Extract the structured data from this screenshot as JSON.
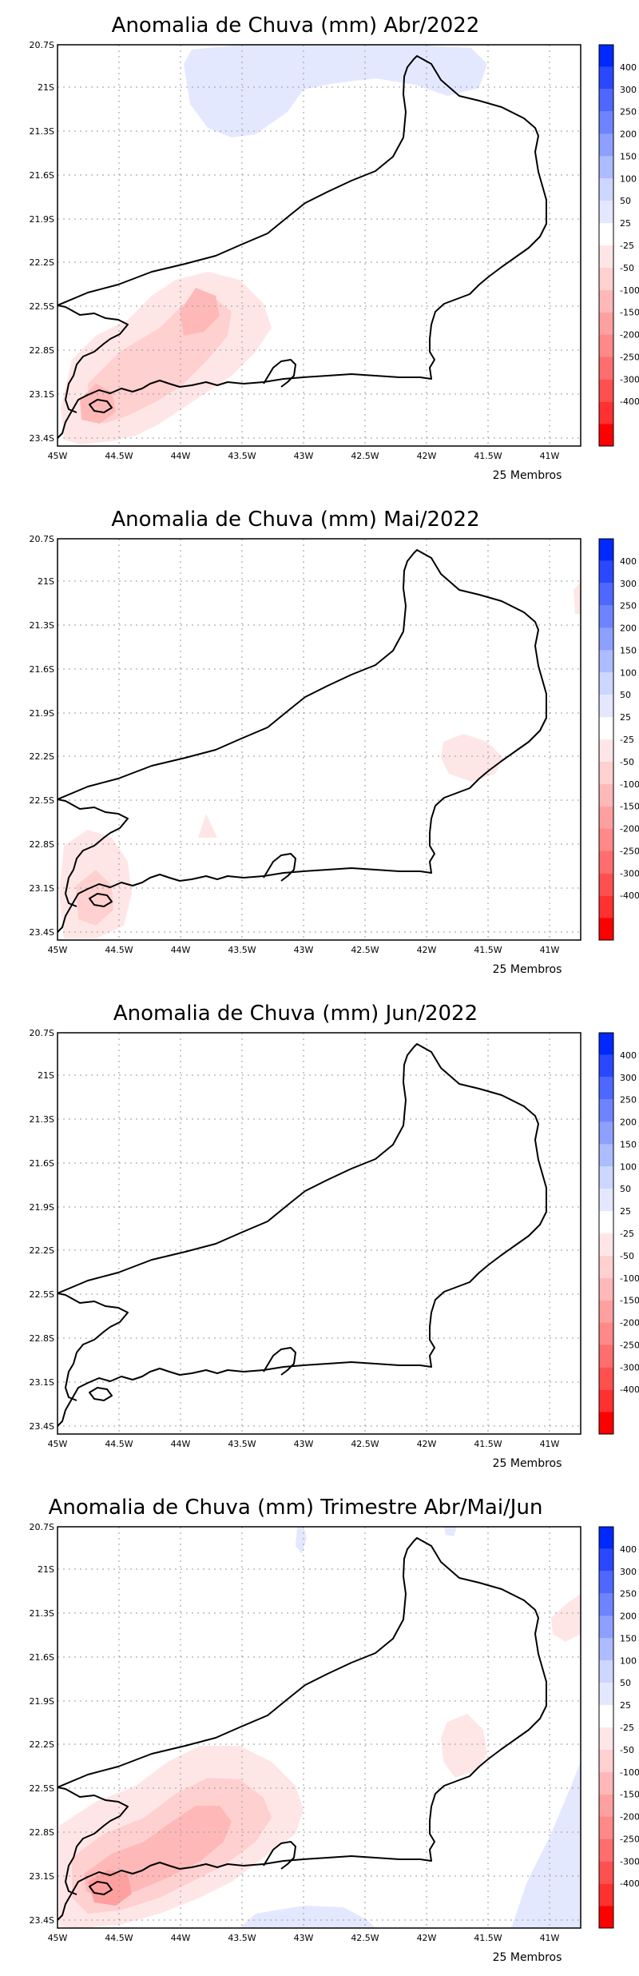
{
  "colors": {
    "blue": [
      "#0028ff",
      "#2a48ff",
      "#4e68ff",
      "#6e84ff",
      "#8ea0ff",
      "#adbcff",
      "#cdd6ff",
      "#e4e8ff"
    ],
    "white": "#ffffff",
    "red": [
      "#ffe6e6",
      "#ffd0d0",
      "#ffb8b8",
      "#ffa0a0",
      "#ff8888",
      "#ff6e6e",
      "#ff5050",
      "#ff3030",
      "#ff0000"
    ]
  },
  "legend": {
    "labels": [
      "400",
      "300",
      "250",
      "200",
      "150",
      "100",
      "50",
      "25",
      "-25",
      "-50",
      "-100",
      "-150",
      "-200",
      "-250",
      "-300",
      "-400"
    ]
  },
  "axes": {
    "lat_labels": [
      "20.7S",
      "21S",
      "21.3S",
      "21.6S",
      "21.9S",
      "22.2S",
      "22.5S",
      "22.8S",
      "23.1S",
      "23.4S"
    ],
    "lon_labels": [
      "45W",
      "44.5W",
      "44W",
      "43.5W",
      "43W",
      "42.5W",
      "42W",
      "41.5W",
      "41W"
    ]
  },
  "panels": [
    {
      "title": "Anomalia de Chuva (mm) Abr/2022",
      "members": "25 Membros"
    },
    {
      "title": "Anomalia de Chuva (mm) Mai/2022",
      "members": "25 Membros"
    },
    {
      "title": "Anomalia de Chuva (mm) Jun/2022",
      "members": "25 Membros"
    },
    {
      "title": "Anomalia de Chuva (mm) Trimestre Abr/Mai/Jun",
      "members": "25 Membros"
    }
  ]
}
